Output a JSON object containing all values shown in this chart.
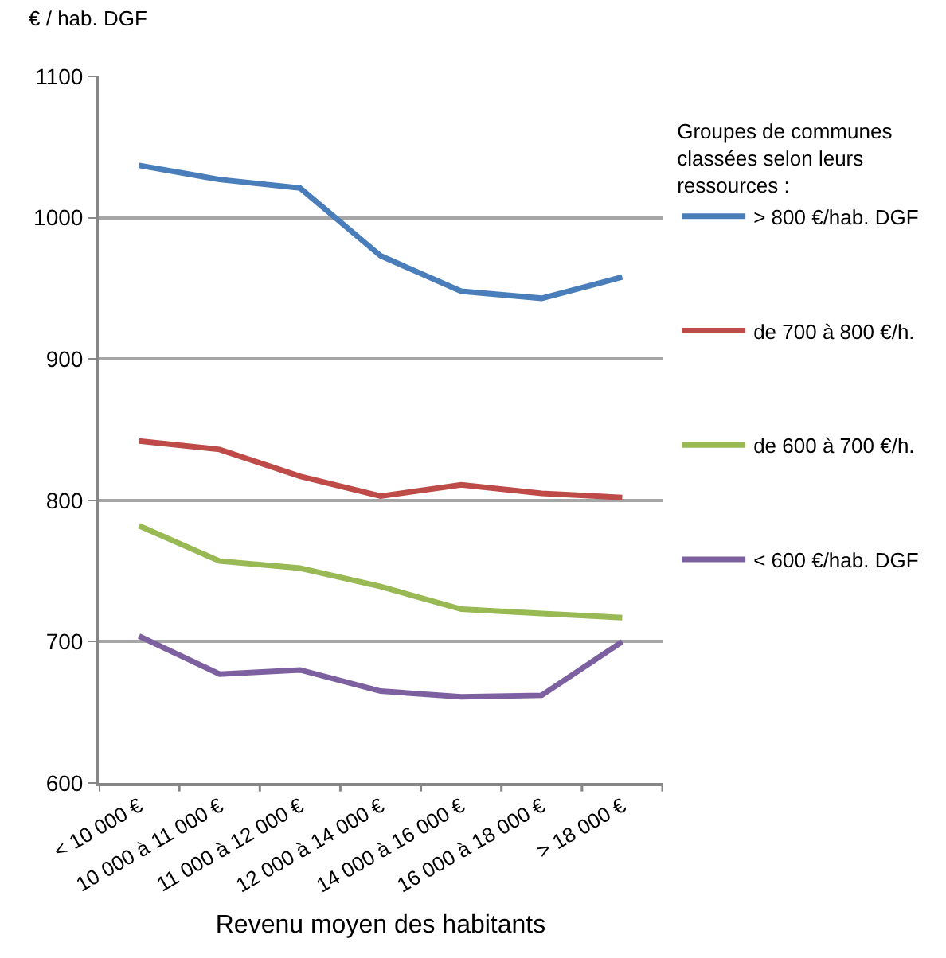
{
  "chart_data": {
    "type": "line",
    "ylabel": "€ / hab. DGF",
    "xlabel": "Revenu moyen des habitants",
    "legend_title": "Groupes de communes classées selon leurs ressources :",
    "categories": [
      "< 10 000 €",
      "10 000 à 11 000 €",
      "11 000 à 12 000 €",
      "12 000 à 14 000 €",
      "14 000 à 16 000 €",
      "16 000 à 18 000 €",
      "> 18 000 €"
    ],
    "series": [
      {
        "name": "> 800 €/hab. DGF",
        "color": "#4a7ebb",
        "values": [
          1037,
          1027,
          1021,
          973,
          948,
          943,
          958
        ]
      },
      {
        "name": "de 700 à 800 €/h.",
        "color": "#be4b48",
        "values": [
          842,
          836,
          817,
          803,
          811,
          805,
          802
        ]
      },
      {
        "name": "de 600 à 700 €/h.",
        "color": "#98b954",
        "values": [
          782,
          757,
          752,
          739,
          723,
          720,
          717
        ]
      },
      {
        "name": "< 600 €/hab. DGF",
        "color": "#7d60a0",
        "values": [
          704,
          677,
          680,
          665,
          661,
          662,
          700
        ]
      }
    ],
    "ylim": [
      600,
      1100
    ],
    "yticks": [
      600,
      700,
      800,
      900,
      1000,
      1100
    ],
    "grid": "y",
    "legend": "right",
    "marker": "none",
    "line_style": "solid"
  }
}
